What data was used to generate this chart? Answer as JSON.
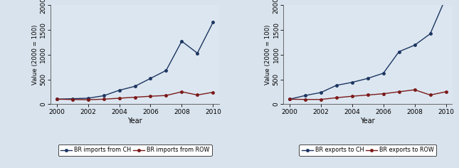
{
  "years": [
    2000,
    2001,
    2002,
    2003,
    2004,
    2005,
    2006,
    2007,
    2008,
    2009,
    2010
  ],
  "imports_CH": [
    100,
    110,
    120,
    170,
    280,
    360,
    520,
    680,
    1270,
    1030,
    1650
  ],
  "imports_ROW": [
    100,
    95,
    90,
    100,
    120,
    140,
    160,
    175,
    250,
    185,
    240
  ],
  "exports_CH": [
    100,
    175,
    235,
    380,
    440,
    520,
    625,
    1060,
    1190,
    1420,
    2150
  ],
  "exports_ROW": [
    100,
    95,
    95,
    130,
    160,
    185,
    210,
    250,
    290,
    185,
    250
  ],
  "ylim": [
    0,
    2000
  ],
  "yticks": [
    0,
    500,
    1000,
    1500,
    2000
  ],
  "xticks": [
    2000,
    2002,
    2004,
    2006,
    2008,
    2010
  ],
  "color_CH": "#1c3561",
  "color_ROW": "#7b1a1a",
  "ylabel": "Value (2000 = 100)",
  "xlabel": "Year",
  "legend1": [
    "BR imports from CH",
    "BR imports from ROW"
  ],
  "legend2": [
    "BR exports to CH",
    "BR exports to ROW"
  ],
  "fig_bg": "#d9e3ed",
  "plot_bg": "#dce6f0"
}
